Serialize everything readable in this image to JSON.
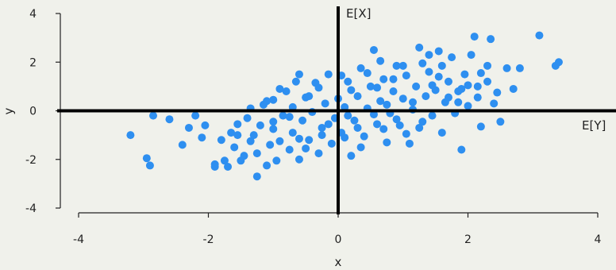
{
  "chart_data": {
    "type": "scatter",
    "title": "",
    "xlabel": "x",
    "ylabel": "y",
    "xlim": [
      -4,
      4
    ],
    "ylim": [
      -4,
      4
    ],
    "xticks": [
      -4,
      -2,
      0,
      2,
      4
    ],
    "yticks": [
      -4,
      -2,
      0,
      2,
      4
    ],
    "grid": false,
    "point_color": "#2e8ff0",
    "reference_lines": [
      {
        "label": "E[X]",
        "orientation": "vertical",
        "value": 0
      },
      {
        "label": "E[Y]",
        "orientation": "horizontal",
        "value": 0
      }
    ],
    "series": [
      {
        "points": [
          [
            -3.2,
            -1.0
          ],
          [
            -2.95,
            -1.95
          ],
          [
            -2.9,
            -2.25
          ],
          [
            -2.85,
            -0.2
          ],
          [
            -2.6,
            -0.35
          ],
          [
            -2.4,
            -1.4
          ],
          [
            -2.3,
            -0.7
          ],
          [
            -2.2,
            -0.2
          ],
          [
            -2.1,
            -1.1
          ],
          [
            -1.9,
            -2.2
          ],
          [
            -1.9,
            -2.3
          ],
          [
            -1.8,
            -1.2
          ],
          [
            -1.75,
            -2.05
          ],
          [
            -1.7,
            -2.3
          ],
          [
            -1.65,
            -0.9
          ],
          [
            -1.6,
            -1.5
          ],
          [
            -1.55,
            -0.55
          ],
          [
            -1.5,
            -2.05
          ],
          [
            -1.45,
            -1.85
          ],
          [
            -1.4,
            -0.3
          ],
          [
            -1.35,
            -1.25
          ],
          [
            -1.3,
            -1.0
          ],
          [
            -1.25,
            -1.75
          ],
          [
            -1.2,
            -0.6
          ],
          [
            -1.15,
            0.25
          ],
          [
            -1.1,
            -2.25
          ],
          [
            -1.05,
            -1.4
          ],
          [
            -1.0,
            -0.45
          ],
          [
            -1.0,
            0.45
          ],
          [
            -0.95,
            -2.05
          ],
          [
            -0.9,
            -1.25
          ],
          [
            -0.85,
            -0.2
          ],
          [
            -0.8,
            0.8
          ],
          [
            -0.75,
            -1.6
          ],
          [
            -0.7,
            -0.9
          ],
          [
            -0.7,
            0.15
          ],
          [
            -0.65,
            1.2
          ],
          [
            -0.6,
            -2.0
          ],
          [
            -0.55,
            -0.4
          ],
          [
            -0.5,
            0.55
          ],
          [
            -0.45,
            -1.2
          ],
          [
            -0.4,
            -0.05
          ],
          [
            -0.35,
            1.15
          ],
          [
            -0.3,
            -1.75
          ],
          [
            -0.25,
            -0.7
          ],
          [
            -0.2,
            0.3
          ],
          [
            -0.15,
            1.5
          ],
          [
            -0.1,
            -1.35
          ],
          [
            -0.05,
            -0.3
          ],
          [
            0.0,
            0.5
          ],
          [
            0.05,
            -0.9
          ],
          [
            0.1,
            0.15
          ],
          [
            0.15,
            1.2
          ],
          [
            0.2,
            -1.85
          ],
          [
            0.25,
            -0.4
          ],
          [
            0.3,
            0.6
          ],
          [
            0.35,
            1.75
          ],
          [
            0.4,
            -1.05
          ],
          [
            0.45,
            0.1
          ],
          [
            0.5,
            1.0
          ],
          [
            0.55,
            2.5
          ],
          [
            0.6,
            -0.55
          ],
          [
            0.65,
            0.4
          ],
          [
            0.7,
            1.3
          ],
          [
            0.75,
            -1.3
          ],
          [
            0.8,
            -0.1
          ],
          [
            0.85,
            0.8
          ],
          [
            0.9,
            1.85
          ],
          [
            0.95,
            -0.6
          ],
          [
            1.0,
            0.5
          ],
          [
            1.05,
            1.45
          ],
          [
            1.1,
            -1.35
          ],
          [
            1.15,
            0.05
          ],
          [
            1.2,
            1.0
          ],
          [
            1.25,
            2.6
          ],
          [
            1.3,
            -0.45
          ],
          [
            1.35,
            0.6
          ],
          [
            1.4,
            1.6
          ],
          [
            1.45,
            -0.2
          ],
          [
            1.5,
            0.85
          ],
          [
            1.55,
            2.45
          ],
          [
            1.6,
            -0.9
          ],
          [
            1.65,
            0.35
          ],
          [
            1.7,
            1.2
          ],
          [
            1.75,
            2.2
          ],
          [
            1.8,
            -0.1
          ],
          [
            1.85,
            0.8
          ],
          [
            1.9,
            -1.6
          ],
          [
            1.95,
            1.5
          ],
          [
            2.0,
            0.2
          ],
          [
            2.05,
            2.3
          ],
          [
            2.1,
            3.05
          ],
          [
            2.15,
            1.0
          ],
          [
            2.2,
            -0.65
          ],
          [
            2.3,
            1.85
          ],
          [
            2.35,
            2.95
          ],
          [
            2.4,
            0.3
          ],
          [
            2.5,
            -0.45
          ],
          [
            2.6,
            1.75
          ],
          [
            2.7,
            0.9
          ],
          [
            2.8,
            1.75
          ],
          [
            3.1,
            3.1
          ],
          [
            3.35,
            1.85
          ],
          [
            3.4,
            2.0
          ],
          [
            1.05,
            -0.95
          ],
          [
            -0.6,
            -1.15
          ],
          [
            0.35,
            -1.5
          ],
          [
            -1.25,
            -2.7
          ],
          [
            0.6,
            0.95
          ],
          [
            1.55,
            1.4
          ],
          [
            -0.9,
            0.9
          ],
          [
            0.15,
            -0.2
          ],
          [
            0.75,
            0.25
          ],
          [
            1.9,
            0.9
          ],
          [
            -0.25,
            -1.0
          ],
          [
            0.45,
            1.55
          ],
          [
            -1.55,
            -1.0
          ],
          [
            1.3,
            1.95
          ],
          [
            2.2,
            1.55
          ],
          [
            -0.45,
            0.6
          ],
          [
            0.9,
            -0.35
          ],
          [
            1.7,
            0.55
          ],
          [
            -1.0,
            -0.75
          ],
          [
            0.2,
            0.85
          ],
          [
            1.45,
            1.05
          ],
          [
            -0.15,
            -0.55
          ],
          [
            0.65,
            2.05
          ],
          [
            2.3,
            1.2
          ],
          [
            -2.05,
            -0.6
          ],
          [
            -0.75,
            -0.25
          ],
          [
            1.15,
            0.35
          ],
          [
            0.3,
            -0.7
          ],
          [
            1.6,
            1.85
          ],
          [
            -0.5,
            -1.55
          ],
          [
            0.85,
            1.3
          ],
          [
            2.0,
            1.05
          ],
          [
            -1.35,
            0.1
          ],
          [
            0.05,
            1.45
          ],
          [
            1.25,
            -0.7
          ],
          [
            2.45,
            0.75
          ],
          [
            -0.3,
            0.95
          ],
          [
            0.55,
            -0.15
          ],
          [
            1.85,
            0.35
          ],
          [
            -1.1,
            0.4
          ],
          [
            0.7,
            -0.75
          ],
          [
            1.4,
            2.3
          ],
          [
            -0.6,
            1.5
          ],
          [
            0.1,
            -1.1
          ],
          [
            1.0,
            1.85
          ],
          [
            2.15,
            0.55
          ]
        ]
      }
    ]
  }
}
